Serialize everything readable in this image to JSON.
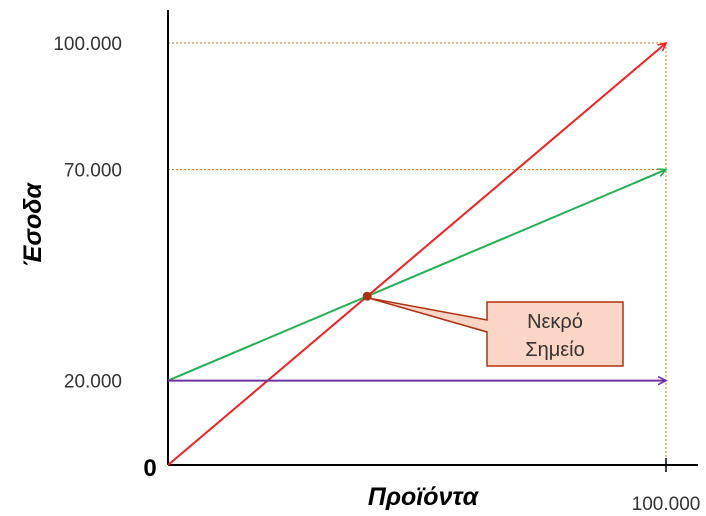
{
  "chart_data": {
    "type": "line",
    "title": "",
    "xlabel": "Προϊόντα",
    "ylabel": "Έσοδα",
    "origin_label": "0",
    "xlim": [
      0,
      100000
    ],
    "ylim": [
      0,
      105000
    ],
    "x_tick_labels": [
      {
        "value": 100000,
        "label": "100.000"
      }
    ],
    "y_tick_labels": [
      {
        "value": 100000,
        "label": "100.000"
      },
      {
        "value": 70000,
        "label": "70.000"
      },
      {
        "value": 20000,
        "label": "20.000"
      }
    ],
    "series": [
      {
        "color": "#ee2222",
        "points": [
          [
            0,
            0
          ],
          [
            100000,
            100000
          ]
        ]
      },
      {
        "color": "#22b052",
        "points": [
          [
            0,
            20000
          ],
          [
            100000,
            70000
          ]
        ]
      },
      {
        "color": "#7030a0",
        "points": [
          [
            0,
            20000
          ],
          [
            100000,
            20000
          ]
        ]
      }
    ],
    "guides": {
      "color": "#e07020",
      "style": "dotted"
    },
    "annotation": {
      "label_line1": "Νεκρό",
      "label_line2": "Σημείο",
      "x": 40000,
      "y": 40000,
      "marker_color": "#b03010",
      "box_fill": "#fbd5c5",
      "box_border": "#b03010"
    },
    "grid": false,
    "legend": "none"
  }
}
